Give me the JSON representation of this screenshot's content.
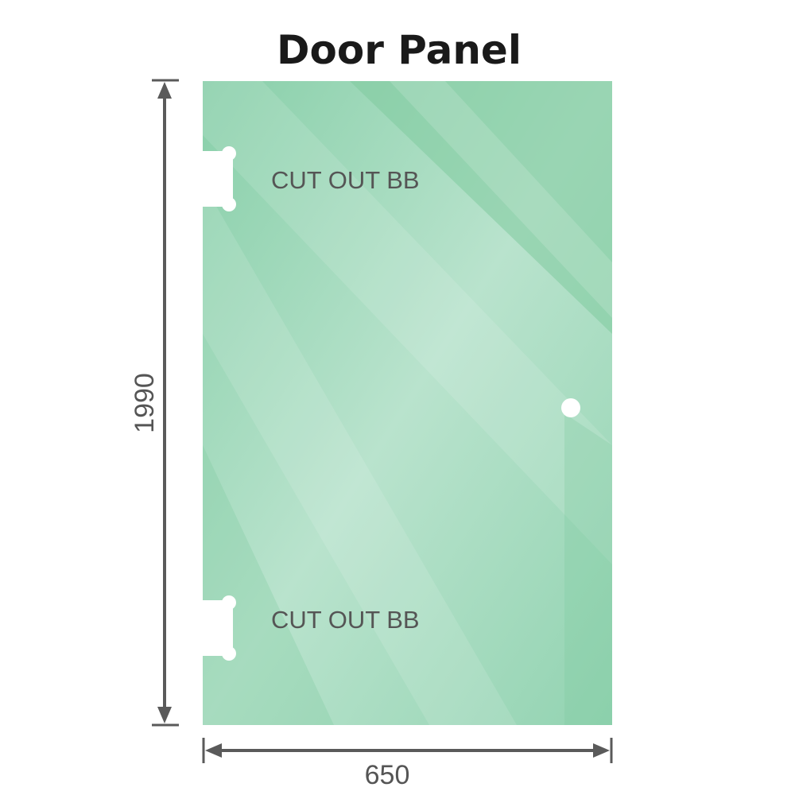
{
  "title": "Door Panel",
  "cutout_top_label": "CUT OUT BB",
  "cutout_bottom_label": "CUT OUT BB",
  "height_label": "1990",
  "width_label": "650",
  "colors": {
    "glass": "#8fd1ae",
    "glass_highlight": "#c4e8d6",
    "dimension_line": "#5a5a5a",
    "background": "#ffffff"
  }
}
